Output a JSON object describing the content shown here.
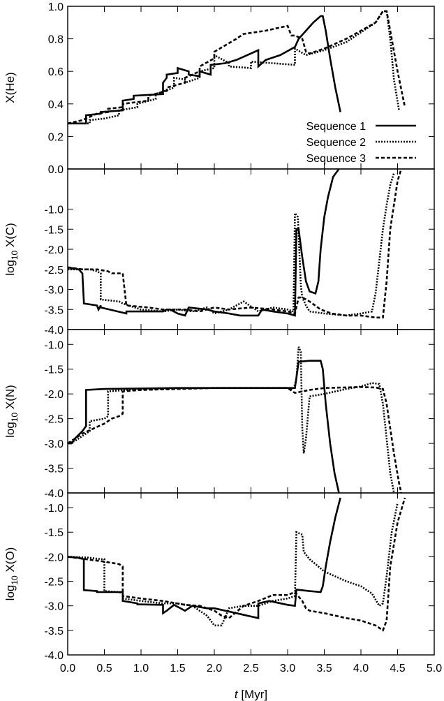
{
  "chart_data": {
    "type": "line",
    "shared_x": {
      "label": "t [Myr]",
      "range": [
        0.0,
        5.0
      ],
      "ticks": [
        "0.0",
        "0.5",
        "1.0",
        "1.5",
        "2.0",
        "2.5",
        "3.0",
        "3.5",
        "4.0",
        "4.5",
        "5.0"
      ]
    },
    "legend": {
      "placement": "lower-right of top panel",
      "entries": [
        "Sequence 1",
        "Sequence 2",
        "Sequence 3"
      ]
    },
    "styles": {
      "Sequence 1": "solid",
      "Sequence 2": "dotted",
      "Sequence 3": "dashed"
    },
    "panels": [
      {
        "id": "he",
        "ylabel_main": "X(He)",
        "ylabel_sub": "",
        "ylabel_tail": "",
        "ylim": [
          0.0,
          1.0
        ],
        "yticks": [
          "1.0",
          "0.8",
          "0.6",
          "0.4",
          "0.2",
          "0.0"
        ],
        "ytick_values": [
          1.0,
          0.8,
          0.6,
          0.4,
          0.2,
          0.0
        ],
        "series": [
          {
            "name": "Sequence 1",
            "x": [
              0,
              0.25,
              0.25,
              0.45,
              0.45,
              0.75,
              0.75,
              0.9,
              0.9,
              1.3,
              1.3,
              1.35,
              1.35,
              1.5,
              1.5,
              1.65,
              1.65,
              1.8,
              1.8,
              1.95,
              1.95,
              2.15,
              2.3,
              2.6,
              2.6,
              2.7,
              2.9,
              3.1,
              3.15,
              3.25,
              3.35,
              3.45,
              3.48,
              3.52,
              3.58,
              3.65,
              3.72
            ],
            "y": [
              0.28,
              0.28,
              0.33,
              0.34,
              0.35,
              0.36,
              0.42,
              0.43,
              0.45,
              0.46,
              0.53,
              0.56,
              0.58,
              0.59,
              0.62,
              0.6,
              0.58,
              0.57,
              0.6,
              0.58,
              0.64,
              0.65,
              0.67,
              0.73,
              0.63,
              0.67,
              0.7,
              0.75,
              0.8,
              0.85,
              0.9,
              0.94,
              0.94,
              0.85,
              0.68,
              0.5,
              0.35
            ]
          },
          {
            "name": "Sequence 2",
            "x": [
              0,
              0.3,
              0.3,
              0.5,
              0.5,
              0.7,
              0.7,
              0.95,
              0.95,
              1.2,
              1.2,
              1.45,
              1.45,
              1.6,
              1.6,
              1.8,
              1.8,
              2.0,
              2.0,
              2.2,
              2.2,
              2.5,
              2.5,
              3.1,
              3.1,
              3.25,
              3.5,
              3.8,
              4.0,
              4.2,
              4.3,
              4.35,
              4.4,
              4.45,
              4.52
            ],
            "y": [
              0.28,
              0.28,
              0.3,
              0.31,
              0.31,
              0.33,
              0.36,
              0.38,
              0.4,
              0.43,
              0.46,
              0.5,
              0.56,
              0.55,
              0.53,
              0.56,
              0.6,
              0.62,
              0.7,
              0.65,
              0.63,
              0.62,
              0.66,
              0.64,
              0.74,
              0.7,
              0.73,
              0.78,
              0.84,
              0.9,
              0.97,
              0.97,
              0.8,
              0.55,
              0.36
            ]
          },
          {
            "name": "Sequence 3",
            "x": [
              0,
              0.2,
              0.4,
              0.55,
              0.55,
              0.75,
              0.75,
              1.1,
              1.1,
              1.35,
              1.35,
              1.6,
              1.6,
              1.8,
              1.8,
              2.0,
              2.0,
              2.3,
              2.4,
              2.7,
              3.0,
              3.05,
              3.1,
              3.2,
              3.25,
              3.3,
              3.5,
              3.8,
              4.0,
              4.2,
              4.3,
              4.35,
              4.4,
              4.5,
              4.6
            ],
            "y": [
              0.28,
              0.3,
              0.34,
              0.35,
              0.37,
              0.38,
              0.4,
              0.42,
              0.45,
              0.48,
              0.5,
              0.53,
              0.56,
              0.6,
              0.63,
              0.68,
              0.72,
              0.8,
              0.83,
              0.85,
              0.88,
              0.82,
              0.82,
              0.8,
              0.72,
              0.71,
              0.74,
              0.8,
              0.85,
              0.9,
              0.97,
              0.97,
              0.85,
              0.6,
              0.38
            ]
          }
        ]
      },
      {
        "id": "c",
        "ylabel_main": "log",
        "ylabel_sub": "10",
        "ylabel_tail": " X(C)",
        "ylim": [
          -4.0,
          0.0
        ],
        "yticks": [
          "-1.0",
          "-1.5",
          "-2.0",
          "-2.5",
          "-3.0",
          "-3.5",
          "-4.0"
        ],
        "ytick_values": [
          -1.0,
          -1.5,
          -2.0,
          -2.5,
          -3.0,
          -3.5,
          -4.0
        ],
        "series": [
          {
            "name": "Sequence 1",
            "x": [
              0,
              0.15,
              0.2,
              0.22,
              0.22,
              0.4,
              0.42,
              0.45,
              0.45,
              0.8,
              0.8,
              1.3,
              1.35,
              1.4,
              1.5,
              1.6,
              1.65,
              1.9,
              2.0,
              2.2,
              2.35,
              2.6,
              2.65,
              2.8,
              3.0,
              3.1,
              3.12,
              3.15,
              3.2,
              3.25,
              3.3,
              3.38,
              3.42,
              3.45,
              3.5,
              3.55,
              3.62,
              3.7
            ],
            "y": [
              -2.45,
              -2.5,
              -2.6,
              -3.3,
              -3.35,
              -3.4,
              -3.5,
              -3.4,
              -3.45,
              -3.6,
              -3.55,
              -3.55,
              -3.5,
              -3.5,
              -3.6,
              -3.65,
              -3.45,
              -3.5,
              -3.55,
              -3.6,
              -3.65,
              -3.65,
              -3.5,
              -3.55,
              -3.6,
              -3.65,
              -1.5,
              -1.5,
              -2.2,
              -2.8,
              -3.05,
              -3.1,
              -2.8,
              -2.0,
              -1.2,
              -0.7,
              -0.2,
              0.0
            ]
          },
          {
            "name": "Sequence 2",
            "x": [
              0,
              0.3,
              0.4,
              0.45,
              0.45,
              0.7,
              0.75,
              1.0,
              1.3,
              1.5,
              1.7,
              1.9,
              2.0,
              2.2,
              2.4,
              2.6,
              2.8,
              3.0,
              3.08,
              3.1,
              3.14,
              3.18,
              3.2,
              3.25,
              3.3,
              3.5,
              3.8,
              4.0,
              4.15,
              4.2,
              4.25,
              4.3,
              4.35,
              4.4,
              4.45
            ],
            "y": [
              -2.5,
              -2.5,
              -2.55,
              -2.6,
              -3.25,
              -3.3,
              -3.35,
              -3.5,
              -3.55,
              -3.5,
              -3.55,
              -3.45,
              -3.6,
              -3.5,
              -3.3,
              -3.55,
              -3.45,
              -3.5,
              -3.55,
              -1.1,
              -1.2,
              -2.9,
              -3.2,
              -3.4,
              -3.55,
              -3.6,
              -3.65,
              -3.6,
              -3.55,
              -3.1,
              -2.3,
              -1.5,
              -0.9,
              -0.4,
              -0.1
            ]
          },
          {
            "name": "Sequence 3",
            "x": [
              0,
              0.2,
              0.4,
              0.55,
              0.6,
              0.75,
              0.8,
              1.1,
              1.3,
              1.6,
              1.8,
              2.0,
              2.2,
              2.5,
              2.8,
              3.0,
              3.1,
              3.15,
              3.2,
              3.3,
              3.45,
              3.6,
              3.8,
              4.0,
              4.2,
              4.3,
              4.35,
              4.4,
              4.5,
              4.55
            ],
            "y": [
              -2.45,
              -2.5,
              -2.5,
              -2.55,
              -2.6,
              -2.6,
              -3.4,
              -3.45,
              -3.5,
              -3.5,
              -3.55,
              -3.45,
              -3.5,
              -3.45,
              -3.5,
              -3.55,
              -3.6,
              -3.2,
              -3.2,
              -3.3,
              -3.5,
              -3.6,
              -3.65,
              -3.65,
              -3.7,
              -3.7,
              -2.8,
              -1.5,
              -0.3,
              0.0
            ]
          }
        ]
      },
      {
        "id": "n",
        "ylabel_main": "log",
        "ylabel_sub": "10",
        "ylabel_tail": " X(N)",
        "ylim": [
          -4.0,
          -0.7
        ],
        "yticks": [
          "-1.0",
          "-1.5",
          "-2.0",
          "-2.5",
          "-3.0",
          "-3.5",
          "-4.0"
        ],
        "ytick_values": [
          -1.0,
          -1.5,
          -2.0,
          -2.5,
          -3.0,
          -3.5,
          -4.0
        ],
        "series": [
          {
            "name": "Sequence 1",
            "x": [
              0,
              0.05,
              0.1,
              0.2,
              0.25,
              0.25,
              0.5,
              1.0,
              1.5,
              2.0,
              2.5,
              3.0,
              3.1,
              3.15,
              3.3,
              3.45,
              3.48,
              3.52,
              3.58,
              3.64,
              3.7
            ],
            "y": [
              -3.0,
              -3.0,
              -2.9,
              -2.75,
              -2.65,
              -1.92,
              -1.9,
              -1.89,
              -1.88,
              -1.88,
              -1.88,
              -1.88,
              -1.88,
              -1.35,
              -1.33,
              -1.33,
              -1.5,
              -2.2,
              -3.0,
              -3.6,
              -4.0
            ]
          },
          {
            "name": "Sequence 2",
            "x": [
              0,
              0.1,
              0.25,
              0.3,
              0.3,
              0.5,
              0.55,
              0.55,
              0.8,
              1.0,
              1.5,
              2.0,
              2.5,
              3.0,
              3.08,
              3.12,
              3.15,
              3.18,
              3.2,
              3.22,
              3.25,
              3.3,
              3.5,
              3.8,
              4.0,
              4.15,
              4.25,
              4.3,
              4.35,
              4.4,
              4.45
            ],
            "y": [
              -3.0,
              -2.95,
              -2.8,
              -2.75,
              -2.55,
              -2.5,
              -2.45,
              -1.95,
              -1.92,
              -1.9,
              -1.89,
              -1.88,
              -1.88,
              -1.88,
              -1.9,
              -1.7,
              -1.05,
              -1.15,
              -2.7,
              -3.2,
              -2.9,
              -2.05,
              -2.0,
              -1.9,
              -1.85,
              -1.78,
              -1.8,
              -2.2,
              -2.9,
              -3.6,
              -4.0
            ]
          },
          {
            "name": "Sequence 3",
            "x": [
              0,
              0.2,
              0.5,
              0.6,
              0.7,
              0.75,
              0.75,
              1.0,
              1.5,
              2.0,
              2.5,
              3.0,
              3.1,
              3.3,
              3.5,
              4.0,
              4.2,
              4.3,
              4.35,
              4.4,
              4.45,
              4.52,
              4.55
            ],
            "y": [
              -3.0,
              -2.8,
              -2.6,
              -2.5,
              -2.45,
              -2.4,
              -1.95,
              -1.92,
              -1.9,
              -1.88,
              -1.88,
              -1.88,
              -1.98,
              -1.92,
              -1.88,
              -1.86,
              -1.87,
              -1.9,
              -2.2,
              -2.7,
              -3.2,
              -3.8,
              -4.0
            ]
          }
        ]
      },
      {
        "id": "o",
        "ylabel_main": "log",
        "ylabel_sub": "10",
        "ylabel_tail": " X(O)",
        "ylim": [
          -4.0,
          -0.7
        ],
        "yticks": [
          "-1.0",
          "-1.5",
          "-2.0",
          "-2.5",
          "-3.0",
          "-3.5",
          "-4.0"
        ],
        "ytick_values": [
          -1.0,
          -1.5,
          -2.0,
          -2.5,
          -3.0,
          -3.5,
          -4.0
        ],
        "series": [
          {
            "name": "Sequence 1",
            "x": [
              0,
              0.15,
              0.22,
              0.22,
              0.4,
              0.4,
              0.75,
              0.75,
              0.95,
              0.95,
              1.3,
              1.3,
              1.35,
              1.45,
              1.6,
              1.7,
              1.9,
              2.0,
              2.3,
              2.45,
              2.6,
              2.6,
              2.75,
              3.0,
              3.1,
              3.12,
              3.3,
              3.45,
              3.48,
              3.52,
              3.58,
              3.65,
              3.72
            ],
            "y": [
              -2.0,
              -2.02,
              -2.05,
              -2.68,
              -2.7,
              -2.72,
              -2.72,
              -2.9,
              -2.95,
              -2.97,
              -2.98,
              -3.15,
              -3.1,
              -2.98,
              -3.1,
              -3.0,
              -3.05,
              -3.05,
              -3.15,
              -3.2,
              -3.25,
              -2.95,
              -2.9,
              -2.98,
              -3.0,
              -2.67,
              -2.7,
              -2.72,
              -2.6,
              -2.2,
              -1.7,
              -1.2,
              -0.8
            ]
          },
          {
            "name": "Sequence 2",
            "x": [
              0,
              0.3,
              0.45,
              0.5,
              0.5,
              0.7,
              0.75,
              0.75,
              1.0,
              1.3,
              1.5,
              1.7,
              1.9,
              2.0,
              2.1,
              2.2,
              2.4,
              2.6,
              2.8,
              3.0,
              3.1,
              3.12,
              3.2,
              3.22,
              3.3,
              3.5,
              3.8,
              4.0,
              4.15,
              4.25,
              4.3,
              4.35,
              4.42,
              4.5
            ],
            "y": [
              -2.0,
              -2.02,
              -2.05,
              -2.05,
              -2.7,
              -2.72,
              -2.75,
              -2.85,
              -2.9,
              -2.95,
              -2.95,
              -3.0,
              -3.2,
              -3.4,
              -3.4,
              -3.05,
              -3.0,
              -3.0,
              -2.9,
              -2.85,
              -2.8,
              -1.5,
              -1.55,
              -1.9,
              -2.05,
              -2.3,
              -2.5,
              -2.6,
              -2.75,
              -3.0,
              -2.95,
              -2.4,
              -1.5,
              -0.9
            ]
          },
          {
            "name": "Sequence 3",
            "x": [
              0,
              0.25,
              0.5,
              0.7,
              0.75,
              0.75,
              1.0,
              1.3,
              1.6,
              1.8,
              2.0,
              2.1,
              2.2,
              2.4,
              2.6,
              2.8,
              3.0,
              3.1,
              3.2,
              3.25,
              3.3,
              3.5,
              3.8,
              4.0,
              4.2,
              4.3,
              4.35,
              4.4,
              4.5,
              4.6
            ],
            "y": [
              -2.0,
              -2.05,
              -2.1,
              -2.15,
              -2.2,
              -2.8,
              -2.85,
              -2.9,
              -2.98,
              -3.0,
              -3.1,
              -3.2,
              -3.25,
              -3.0,
              -2.9,
              -2.78,
              -2.78,
              -2.72,
              -2.9,
              -3.05,
              -3.1,
              -3.15,
              -3.25,
              -3.3,
              -3.4,
              -3.5,
              -3.3,
              -2.2,
              -1.3,
              -0.8
            ]
          }
        ]
      }
    ]
  }
}
